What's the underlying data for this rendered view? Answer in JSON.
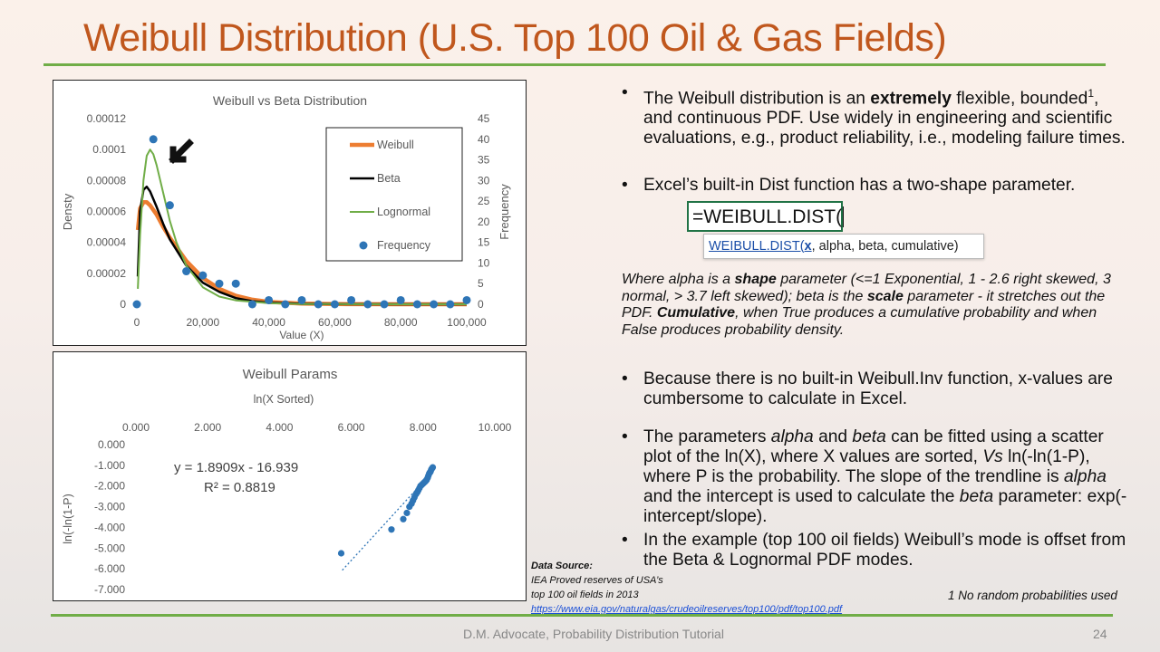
{
  "title": "Weibull Distribution (U.S. Top 100 Oil & Gas Fields)",
  "bullets": {
    "b1_pre": "The Weibull distribution is an ",
    "b1_bold": "extremely",
    "b1_mid": " flexible, bounded",
    "b1_sup": "1",
    "b1_post": ", and continuous PDF.  Use widely in engineering and scientific evaluations, e.g., product reliability, i.e., modeling failure times.",
    "b2": "Excel’s built-in Dist function has a two-shape parameter.",
    "b3": "Because there is no built-in Weibull.Inv function, x-values are cumbersome to calculate in Excel.",
    "b4_1": "The parameters ",
    "b4_alpha": "alpha",
    "b4_2": " and ",
    "b4_beta": "beta",
    "b4_3": " can be fitted using a scatter plot of the ln(X), where X values are sorted, ",
    "b4_vs": "Vs",
    "b4_4": " ln(-ln(1-P), where P is the probability. The slope of the trendline is ",
    "b4_alpha2": "alpha",
    "b4_5": " and the intercept is used to calculate the ",
    "b4_beta2": "beta",
    "b4_6": " parameter: exp(-intercept/slope).",
    "b5": "In the example (top 100 oil fields) Weibull’s mode is offset from the Beta & Lognormal  PDF modes."
  },
  "formula": {
    "cell": "=WEIBULL.DIST(",
    "tip_fn": "WEIBULL.DIST(",
    "tip_arg": "x",
    "tip_rest": ", alpha, beta, cumulative)"
  },
  "italic_para": {
    "p1": "Where alpha is a ",
    "shape": "shape",
    "p2": " parameter (<=1 Exponential, 1 - 2.6 right skewed, 3 normal, > 3.7 left skewed); beta is the ",
    "scale": "scale",
    "p3": " parameter - it stretches out the PDF. ",
    "cumulative": "Cumulative",
    "p4": ", when True produces a cumulative probability and when False produces probability density."
  },
  "source": {
    "label": "Data Source:",
    "line1": "IEA Proved reserves of USA’s",
    "line2": "top 100 oil fields in 2013",
    "url": "https://www.eia.gov/naturalgas/crudeoilreserves/top100/pdf/top100.pdf"
  },
  "footnote": "1 No random probabilities used",
  "footer": "D.M. Advocate, Probability Distribution Tutorial",
  "page_number": "24",
  "colors": {
    "title": "#c0571d",
    "rule": "#70ad47",
    "weibull": "#ed7d31",
    "beta": "#000000",
    "lognormal": "#70ad47",
    "frequency": "#2e75b6"
  },
  "chart_data": [
    {
      "type": "line",
      "title": "Weibull vs Beta Distribution",
      "xlabel": "Value (X)",
      "ylabel": "Densty",
      "y2label": "Frequency",
      "xlim": [
        0,
        100000
      ],
      "ylim": [
        0,
        0.00012
      ],
      "y2lim": [
        0,
        45
      ],
      "xticks": [
        "0",
        "20,000",
        "40,000",
        "60,000",
        "80,000",
        "100,000"
      ],
      "yticks": [
        "0",
        "0.00002",
        "0.00004",
        "0.00006",
        "0.00008",
        "0.0001",
        "0.00012"
      ],
      "y2ticks": [
        "0",
        "5",
        "10",
        "15",
        "20",
        "25",
        "30",
        "35",
        "40",
        "45"
      ],
      "legend_position": "top-right",
      "series": [
        {
          "name": "Weibull",
          "x": [
            300,
            1000,
            2000,
            3000,
            4000,
            6000,
            8000,
            10000,
            15000,
            20000,
            25000,
            30000,
            35000,
            40000,
            50000,
            60000,
            80000,
            100000
          ],
          "values": [
            4.8e-05,
            6.2e-05,
            6.6e-05,
            6.6e-05,
            6.4e-05,
            5.8e-05,
            5e-05,
            4.3e-05,
            2.8e-05,
            1.7e-05,
            1e-05,
            5.5e-06,
            3e-06,
            1.5e-06,
            4e-07,
            1e-07,
            0,
            0
          ]
        },
        {
          "name": "Beta",
          "x": [
            300,
            1000,
            2000,
            3000,
            4000,
            6000,
            8000,
            10000,
            15000,
            20000,
            25000,
            30000,
            35000,
            40000,
            50000,
            60000,
            80000,
            100000
          ],
          "values": [
            1.8e-05,
            6e-05,
            7.4e-05,
            7.6e-05,
            7.3e-05,
            6.3e-05,
            5.2e-05,
            4.2e-05,
            2.5e-05,
            1.4e-05,
            8e-06,
            4e-06,
            2e-06,
            1e-06,
            3e-07,
            1e-07,
            0,
            0
          ]
        },
        {
          "name": "Lognormal",
          "x": [
            300,
            1000,
            2000,
            3000,
            4000,
            5000,
            6000,
            8000,
            10000,
            12000,
            15000,
            20000,
            25000,
            30000,
            40000,
            50000,
            60000,
            80000,
            100000
          ],
          "values": [
            1e-05,
            4.5e-05,
            8e-05,
            9.6e-05,
            0.0001,
            9.7e-05,
            9e-05,
            7.2e-05,
            5.4e-05,
            4e-05,
            2.5e-05,
            1.1e-05,
            5e-06,
            2.5e-06,
            7e-07,
            2e-07,
            1e-07,
            0,
            0
          ]
        },
        {
          "name": "Frequency",
          "axis": "secondary",
          "x": [
            0,
            5000,
            10000,
            15000,
            20000,
            25000,
            30000,
            35000,
            40000,
            45000,
            50000,
            55000,
            60000,
            65000,
            70000,
            75000,
            80000,
            85000,
            90000,
            95000,
            100000
          ],
          "values": [
            0,
            40,
            24,
            8,
            7,
            5,
            5,
            0,
            1,
            0,
            1,
            0,
            0,
            1,
            0,
            0,
            1,
            0,
            0,
            0,
            1
          ]
        }
      ]
    },
    {
      "type": "scatter",
      "title": "Weibull Params",
      "xlabel": "ln(X Sorted)",
      "ylabel": "ln(-ln(1-P)",
      "xlim": [
        0,
        10
      ],
      "ylim": [
        -7,
        0
      ],
      "xticks": [
        "0.000",
        "2.000",
        "4.000",
        "6.000",
        "8.000",
        "10.000"
      ],
      "yticks": [
        "0.000",
        "-1.000",
        "-2.000",
        "-3.000",
        "-4.000",
        "-5.000",
        "-6.000",
        "-7.000"
      ],
      "trendline": {
        "equation": "y = 1.8909x - 16.939",
        "r2": "R² = 0.8819",
        "slope": 1.8909,
        "intercept": -16.939,
        "x_range": [
          5.75,
          8.1
        ]
      },
      "points": {
        "x": [
          5.72,
          7.12,
          7.45,
          7.55,
          7.62,
          7.68,
          7.72,
          7.76,
          7.8,
          7.84,
          7.87,
          7.9,
          7.93,
          7.96,
          7.99,
          8.02,
          8.05,
          8.08,
          8.1,
          8.13,
          8.15,
          8.17,
          8.19,
          8.21,
          8.23,
          8.25,
          8.27
        ],
        "values": [
          -5.25,
          -4.1,
          -3.6,
          -3.3,
          -3.0,
          -2.85,
          -2.7,
          -2.55,
          -2.4,
          -2.3,
          -2.2,
          -2.1,
          -2.0,
          -1.95,
          -1.9,
          -1.85,
          -1.8,
          -1.75,
          -1.7,
          -1.6,
          -1.5,
          -1.4,
          -1.35,
          -1.3,
          -1.2,
          -1.15,
          -1.1
        ]
      }
    }
  ]
}
